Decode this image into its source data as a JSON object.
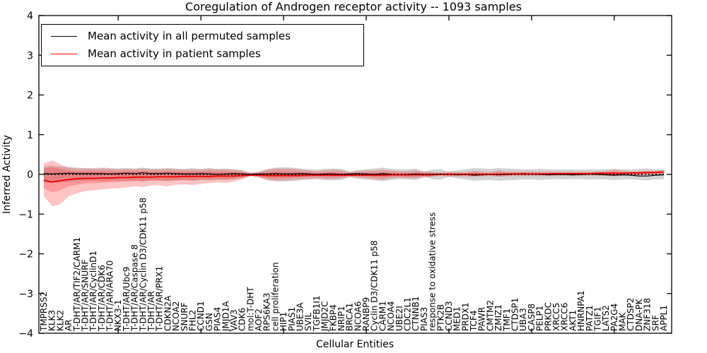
{
  "figure": {
    "title": "Coregulation of Androgen receptor activity -- 1093 samples",
    "xlabel": "Cellular Entities",
    "ylabel": "Inferred Activity"
  },
  "legend": {
    "entries": [
      {
        "label": "Mean activity in all permuted samples",
        "color": "#000000"
      },
      {
        "label": "Mean activity in patient samples",
        "color": "#ff0000"
      }
    ]
  },
  "colors": {
    "permuted_line": "#000000",
    "patient_line": "#ee0000",
    "permuted_band": "rgba(110,110,110,0.30)",
    "patient_band": "rgba(255,30,30,0.26)",
    "axis": "#000000",
    "background": "#ffffff"
  },
  "chart_data": {
    "type": "line",
    "title": "Coregulation of Androgen receptor activity -- 1093 samples",
    "xlabel": "Cellular Entities",
    "ylabel": "Inferred Activity",
    "ylim": [
      -4,
      4
    ],
    "y_ticks": [
      4,
      3,
      2,
      1,
      0,
      -1,
      -2,
      -3,
      -4
    ],
    "y_tick_labels": [
      "4",
      "3",
      "2",
      "1",
      "0",
      "−1",
      "−2",
      "−3",
      "−4"
    ],
    "x_major_tick_indices": [
      9,
      19,
      29,
      39,
      49,
      59,
      69
    ],
    "grid": false,
    "legend_position": "upper left",
    "zero_line": {
      "value": 0,
      "style": "dotted",
      "color": "#000000"
    },
    "categories": [
      "TMPRSS2",
      "KLK3",
      "KLK2",
      "AR",
      "T-DHT/AR/TIF2/CARM1",
      "T-DHT/AR/SNURF",
      "T-DHT/AR/CyclinD1",
      "T-DHT/AR/CDK6",
      "T-DHT/AR/ARA70",
      "NKX3-1",
      "T-DHT/AR/Ubc9",
      "T-DHT/AR/Caspase 8",
      "T-DHT/AR/Cyclin D3/CDK11 p58",
      "T-DHT/AR",
      "T-DHT/AR/PRX1",
      "CDKN2A",
      "NCOA2",
      "SNURF",
      "FHL2",
      "CCND1",
      "GSN",
      "PIAS4",
      "JMJD1A",
      "VAV3",
      "CDK6",
      "mol:T-DHT",
      "AOF2",
      "RPS6KA3",
      "cell proliferation",
      "HIP1",
      "PIAS1",
      "UBE3A",
      "SVIL",
      "TGFB1I1",
      "JMJD2C",
      "FKBP4",
      "NRIP1",
      "BRCA1",
      "NCOA6",
      "RANBP9",
      "Cyclin D3/CDK11 p58",
      "CARM1",
      "NCOA4",
      "UBE2I",
      "CDC2L1",
      "CTNNB1",
      "PIAS3",
      "response to oxidative stress",
      "PTK2B",
      "CCND3",
      "MED1",
      "PRDX1",
      "TCF4",
      "PAWR",
      "CMTM2",
      "ZMIZ1",
      "TMF1",
      "CTDSP1",
      "UBA3",
      "CASP8",
      "PELP1",
      "PRKDC",
      "XRCC5",
      "XRCC6",
      "AKT1",
      "HNRNPA1",
      "PATZ1",
      "TGIF1",
      "LATS2",
      "PA2G4",
      "MAK",
      "CTDSP2",
      "DNA-PK",
      "ZNF318",
      "SRF",
      "APPL1"
    ],
    "series": [
      {
        "name": "Mean activity in all permuted samples",
        "color": "#000000",
        "width": 1.2,
        "values": [
          0.02,
          0.01,
          0.02,
          0.03,
          0.02,
          0.02,
          0.02,
          0.02,
          0.01,
          0.02,
          0.03,
          0.02,
          0.04,
          0.02,
          0.02,
          0.03,
          0.02,
          0.01,
          0.01,
          0.02,
          0.01,
          0.0,
          0.01,
          0.02,
          0.01,
          0.0,
          0.01,
          0.01,
          0.02,
          0.01,
          0.01,
          0.02,
          0.01,
          0.0,
          0.01,
          0.01,
          0.0,
          0.01,
          0.02,
          0.01,
          0.0,
          0.02,
          0.0,
          -0.01,
          0.0,
          0.01,
          0.0,
          0.0,
          0.01,
          0.0,
          -0.01,
          0.0,
          -0.02,
          -0.01,
          0.0,
          -0.01,
          0.0,
          0.01,
          0.02,
          0.01,
          0.0,
          -0.01,
          0.0,
          0.0,
          -0.01,
          0.0,
          0.01,
          0.0,
          -0.01,
          -0.02,
          -0.01,
          -0.02,
          -0.04,
          -0.04,
          -0.02,
          -0.01
        ]
      },
      {
        "name": "Mean activity in patient samples",
        "color": "#ee0000",
        "width": 1.8,
        "values": [
          -0.15,
          -0.19,
          -0.16,
          -0.13,
          -0.11,
          -0.1,
          -0.1,
          -0.09,
          -0.09,
          -0.08,
          -0.08,
          -0.07,
          -0.07,
          -0.07,
          -0.06,
          -0.06,
          -0.06,
          -0.05,
          -0.05,
          -0.05,
          -0.05,
          -0.04,
          -0.04,
          -0.04,
          -0.03,
          -0.02,
          -0.02,
          -0.03,
          -0.03,
          -0.03,
          -0.03,
          -0.03,
          -0.02,
          -0.02,
          -0.02,
          -0.02,
          -0.02,
          -0.02,
          -0.02,
          -0.02,
          -0.02,
          -0.02,
          -0.01,
          -0.01,
          -0.01,
          -0.01,
          -0.01,
          -0.01,
          0.0,
          0.0,
          0.0,
          0.0,
          0.0,
          0.0,
          0.0,
          0.0,
          0.01,
          0.01,
          0.01,
          0.01,
          0.01,
          0.01,
          0.02,
          0.02,
          0.02,
          0.02,
          0.02,
          0.03,
          0.03,
          0.03,
          0.03,
          0.04,
          0.04,
          0.05,
          0.05,
          0.06
        ]
      }
    ],
    "bands": [
      {
        "name": "permuted-range-band",
        "color": "rgba(110,110,110,0.30)",
        "upper": [
          0.2,
          0.22,
          0.2,
          0.18,
          0.17,
          0.16,
          0.16,
          0.17,
          0.16,
          0.15,
          0.16,
          0.15,
          0.17,
          0.15,
          0.15,
          0.16,
          0.15,
          0.14,
          0.16,
          0.14,
          0.16,
          0.14,
          0.15,
          0.13,
          0.1,
          0.04,
          0.07,
          0.13,
          0.17,
          0.18,
          0.17,
          0.15,
          0.13,
          0.12,
          0.14,
          0.15,
          0.14,
          0.07,
          0.11,
          0.13,
          0.15,
          0.17,
          0.14,
          0.12,
          0.13,
          0.14,
          0.06,
          0.12,
          0.13,
          0.06,
          0.1,
          0.13,
          0.16,
          0.15,
          0.14,
          0.16,
          0.15,
          0.14,
          0.13,
          0.13,
          0.14,
          0.13,
          0.12,
          0.13,
          0.12,
          0.12,
          0.13,
          0.12,
          0.13,
          0.14,
          0.13,
          0.12,
          0.14,
          0.15,
          0.13,
          0.12
        ],
        "lower": [
          -0.2,
          -0.22,
          -0.2,
          -0.18,
          -0.17,
          -0.16,
          -0.16,
          -0.17,
          -0.16,
          -0.15,
          -0.16,
          -0.15,
          -0.17,
          -0.15,
          -0.15,
          -0.16,
          -0.15,
          -0.14,
          -0.16,
          -0.14,
          -0.16,
          -0.14,
          -0.15,
          -0.13,
          -0.1,
          -0.04,
          -0.07,
          -0.13,
          -0.17,
          -0.18,
          -0.17,
          -0.15,
          -0.13,
          -0.12,
          -0.14,
          -0.15,
          -0.14,
          -0.07,
          -0.11,
          -0.13,
          -0.15,
          -0.17,
          -0.14,
          -0.12,
          -0.13,
          -0.14,
          -0.06,
          -0.12,
          -0.13,
          -0.06,
          -0.1,
          -0.13,
          -0.16,
          -0.15,
          -0.14,
          -0.16,
          -0.15,
          -0.14,
          -0.13,
          -0.13,
          -0.14,
          -0.13,
          -0.12,
          -0.13,
          -0.12,
          -0.12,
          -0.13,
          -0.12,
          -0.13,
          -0.14,
          -0.13,
          -0.12,
          -0.14,
          -0.15,
          -0.13,
          -0.12
        ]
      },
      {
        "name": "patient-range-outer-band",
        "color": "rgba(255,30,30,0.26)",
        "upper": [
          0.28,
          0.35,
          0.25,
          0.18,
          0.15,
          0.15,
          0.14,
          0.15,
          0.14,
          0.13,
          0.14,
          0.13,
          0.15,
          0.13,
          0.13,
          0.14,
          0.13,
          0.12,
          0.13,
          0.12,
          0.14,
          0.12,
          0.13,
          0.12,
          0.1,
          0.04,
          0.06,
          0.12,
          0.15,
          0.15,
          0.14,
          0.12,
          0.1,
          0.08,
          0.1,
          0.12,
          0.1,
          0.06,
          0.08,
          0.1,
          0.1,
          0.12,
          0.1,
          0.08,
          0.08,
          0.1,
          0.08,
          0.06,
          0.04,
          0.08,
          0.06,
          0.06,
          0.09,
          0.07,
          0.06,
          0.1,
          0.07,
          0.07,
          0.07,
          0.07,
          0.07,
          0.07,
          0.07,
          0.07,
          0.07,
          0.07,
          0.07,
          0.07,
          0.08,
          0.12,
          0.09,
          0.07,
          0.08,
          0.08,
          0.09,
          0.11
        ],
        "lower": [
          -0.55,
          -0.8,
          -0.75,
          -0.55,
          -0.48,
          -0.42,
          -0.4,
          -0.38,
          -0.36,
          -0.35,
          -0.33,
          -0.3,
          -0.32,
          -0.28,
          -0.28,
          -0.3,
          -0.26,
          -0.25,
          -0.27,
          -0.24,
          -0.22,
          -0.2,
          -0.22,
          -0.18,
          -0.12,
          -0.05,
          -0.08,
          -0.15,
          -0.16,
          -0.15,
          -0.14,
          -0.12,
          -0.12,
          -0.1,
          -0.12,
          -0.12,
          -0.1,
          -0.07,
          -0.08,
          -0.1,
          -0.12,
          -0.14,
          -0.1,
          -0.08,
          -0.1,
          -0.1,
          -0.08,
          -0.06,
          -0.04,
          -0.06,
          -0.05,
          -0.05,
          -0.06,
          -0.05,
          -0.04,
          -0.06,
          -0.05,
          -0.04,
          -0.04,
          -0.04,
          -0.04,
          -0.04,
          -0.04,
          -0.04,
          -0.04,
          -0.03,
          -0.03,
          -0.03,
          -0.03,
          -0.05,
          -0.03,
          -0.02,
          -0.02,
          -0.01,
          0.0,
          0.01
        ]
      },
      {
        "name": "patient-range-inner-band",
        "color": "rgba(255,30,30,0.26)",
        "upper": [
          0.15,
          0.18,
          0.14,
          0.1,
          0.08,
          0.08,
          0.08,
          0.08,
          0.08,
          0.07,
          0.08,
          0.07,
          0.08,
          0.07,
          0.07,
          0.08,
          0.07,
          0.07,
          0.07,
          0.07,
          0.08,
          0.07,
          0.07,
          0.06,
          0.05,
          0.02,
          0.03,
          0.06,
          0.08,
          0.08,
          0.07,
          0.06,
          0.05,
          0.04,
          0.05,
          0.06,
          0.05,
          0.03,
          0.04,
          0.05,
          0.05,
          0.06,
          0.05,
          0.04,
          0.04,
          0.05,
          0.04,
          0.03,
          0.02,
          0.04,
          0.03,
          0.03,
          0.05,
          0.04,
          0.03,
          0.06,
          0.04,
          0.04,
          0.04,
          0.04,
          0.04,
          0.04,
          0.04,
          0.04,
          0.04,
          0.04,
          0.04,
          0.04,
          0.05,
          0.07,
          0.05,
          0.04,
          0.05,
          0.05,
          0.06,
          0.07
        ],
        "lower": [
          -0.35,
          -0.45,
          -0.4,
          -0.3,
          -0.26,
          -0.23,
          -0.22,
          -0.21,
          -0.2,
          -0.19,
          -0.18,
          -0.17,
          -0.18,
          -0.16,
          -0.16,
          -0.17,
          -0.15,
          -0.14,
          -0.15,
          -0.13,
          -0.12,
          -0.11,
          -0.12,
          -0.1,
          -0.07,
          -0.03,
          -0.05,
          -0.09,
          -0.1,
          -0.09,
          -0.08,
          -0.07,
          -0.07,
          -0.06,
          -0.07,
          -0.07,
          -0.06,
          -0.04,
          -0.05,
          -0.06,
          -0.07,
          -0.08,
          -0.06,
          -0.05,
          -0.06,
          -0.06,
          -0.05,
          -0.04,
          -0.02,
          -0.04,
          -0.03,
          -0.03,
          -0.04,
          -0.03,
          -0.02,
          -0.04,
          -0.03,
          -0.02,
          -0.02,
          -0.02,
          -0.02,
          -0.02,
          -0.02,
          -0.02,
          -0.02,
          -0.02,
          -0.02,
          -0.02,
          -0.02,
          -0.03,
          -0.02,
          -0.01,
          -0.01,
          0.0,
          0.01,
          0.02
        ]
      }
    ]
  }
}
